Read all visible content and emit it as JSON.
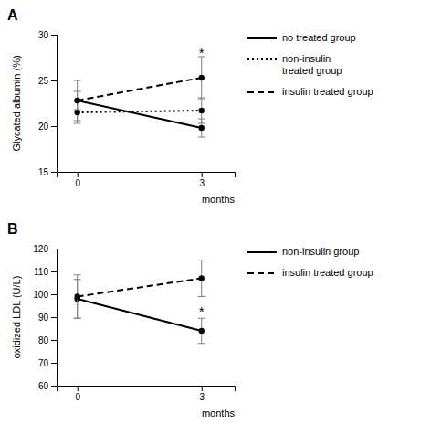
{
  "chart_data": [
    {
      "type": "line",
      "title": "A",
      "ylabel": "Glycated albumin (%)",
      "xlabel": "months",
      "x": [
        0,
        3
      ],
      "xlim": [
        -0.5,
        3.8
      ],
      "xticks": [
        0,
        3
      ],
      "ylim": [
        15,
        30
      ],
      "yticks": [
        15,
        20,
        25,
        30
      ],
      "grid": false,
      "legend": "right",
      "series": [
        {
          "name": "no treated group",
          "color": "black",
          "line_style": "solid",
          "marker": "circle",
          "values": [
            22.8,
            19.8
          ],
          "error_lo": [
            2.2,
            1.0
          ],
          "error_hi": [
            2.2,
            1.0
          ]
        },
        {
          "name": "non-insulin\ntreated group",
          "color": "black",
          "line_style": "dotted",
          "marker": "circle",
          "values": [
            21.5,
            21.7
          ],
          "error_lo": [
            1.2,
            1.4
          ],
          "error_hi": [
            1.2,
            1.4
          ]
        },
        {
          "name": "insulin treated group",
          "color": "black",
          "line_style": "dashed",
          "marker": "circle",
          "values": [
            22.8,
            25.3
          ],
          "error_lo": [
            1.0,
            2.3
          ],
          "error_hi": [
            1.0,
            2.3
          ]
        }
      ],
      "annotations": [
        {
          "text": "*",
          "x": 3,
          "y": 27.5
        }
      ]
    },
    {
      "type": "line",
      "title": "B",
      "ylabel": "oxidized LDL (U/L)",
      "xlabel": "months",
      "x": [
        0,
        3
      ],
      "xlim": [
        -0.5,
        3.8
      ],
      "xticks": [
        0,
        3
      ],
      "ylim": [
        60,
        120
      ],
      "yticks": [
        60,
        70,
        80,
        90,
        100,
        110,
        120
      ],
      "grid": false,
      "legend": "right",
      "series": [
        {
          "name": "non-insulin group",
          "color": "black",
          "line_style": "solid",
          "marker": "circle",
          "values": [
            98.0,
            84.0
          ],
          "error_lo": [
            8.5,
            5.5
          ],
          "error_hi": [
            8.5,
            5.5
          ]
        },
        {
          "name": "insulin treated group",
          "color": "black",
          "line_style": "dashed",
          "marker": "circle",
          "values": [
            99.0,
            107.0
          ],
          "error_lo": [
            9.5,
            8.0
          ],
          "error_hi": [
            9.5,
            8.0
          ]
        }
      ],
      "annotations": [
        {
          "text": "*",
          "x": 3,
          "y": 90.5
        }
      ]
    }
  ]
}
